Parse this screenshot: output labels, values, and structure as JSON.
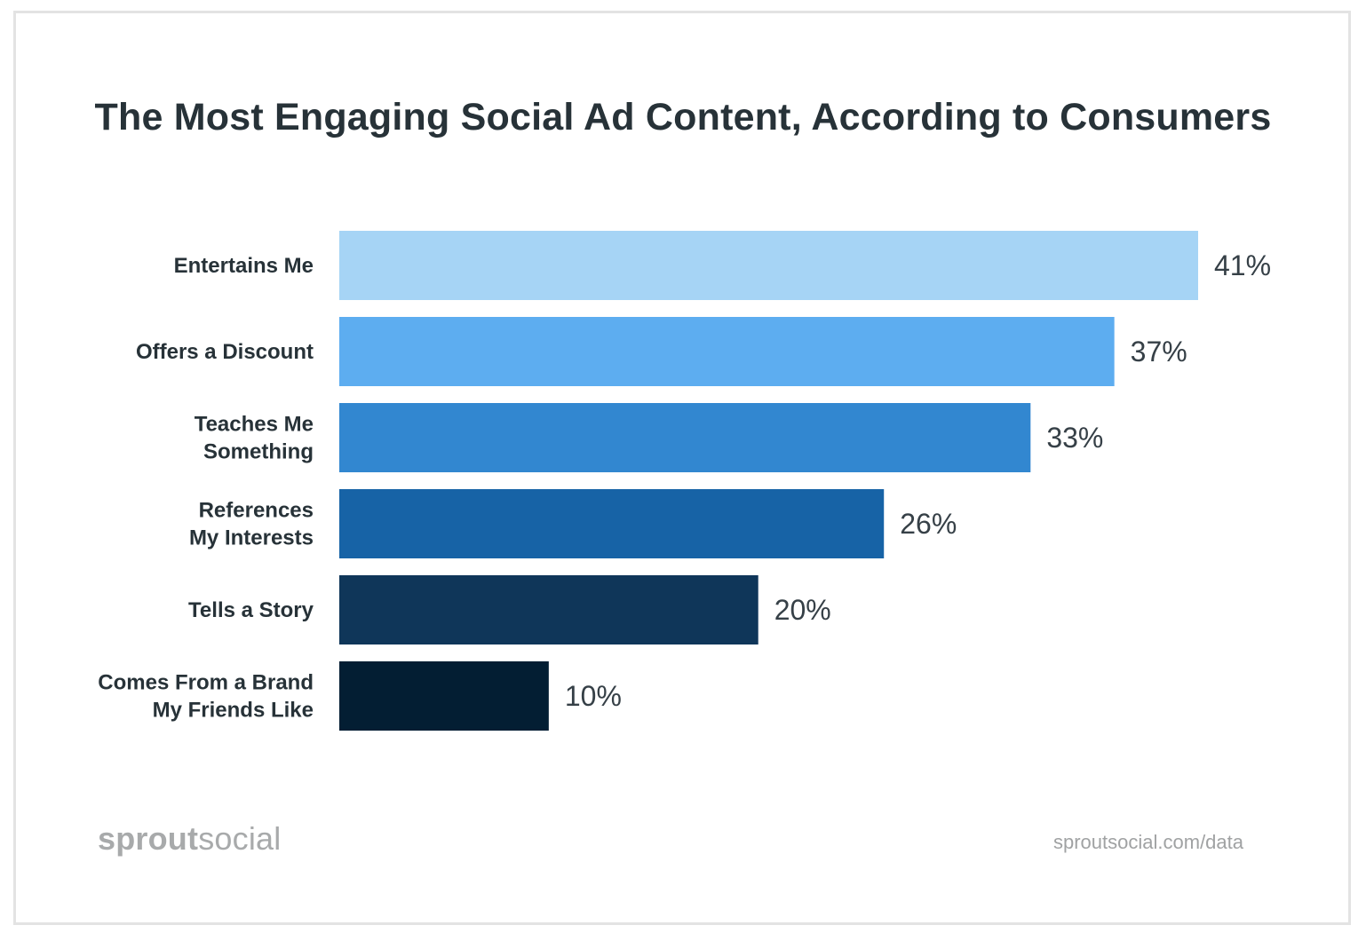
{
  "title": "The Most Engaging Social Ad Content, According to Consumers",
  "brand": {
    "logo_part1": "sprout",
    "logo_part2": "social",
    "url": "sproutsocial.com/data"
  },
  "chart_data": {
    "type": "bar",
    "orientation": "horizontal",
    "title": "The Most Engaging Social Ad Content, According to Consumers",
    "categories": [
      [
        "Entertains Me"
      ],
      [
        "Offers a Discount"
      ],
      [
        "Teaches Me",
        "Something"
      ],
      [
        "References",
        "My Interests"
      ],
      [
        "Tells a Story"
      ],
      [
        "Comes From a Brand",
        "My Friends Like"
      ]
    ],
    "values": [
      41,
      37,
      33,
      26,
      20,
      10
    ],
    "value_labels": [
      "41%",
      "37%",
      "33%",
      "26%",
      "20%",
      "10%"
    ],
    "unit": "%",
    "colors": [
      "#a6d4f5",
      "#5dadf0",
      "#3287d0",
      "#1763a6",
      "#0f3659",
      "#031e33"
    ],
    "xlim": [
      0,
      41
    ],
    "grid": false,
    "legend": "none"
  }
}
